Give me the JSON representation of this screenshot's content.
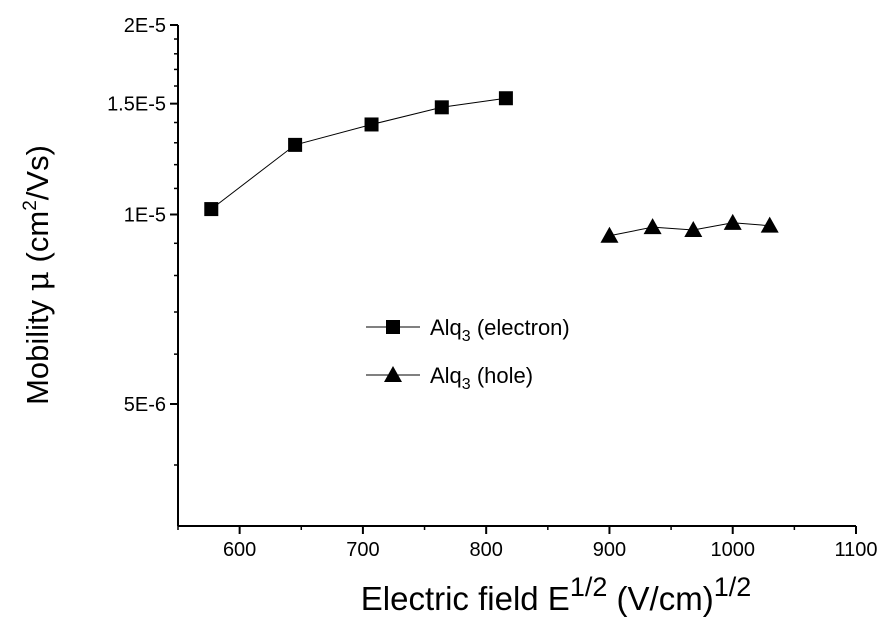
{
  "chart_data": {
    "type": "scatter",
    "xlabel": {
      "main": "Electric field E",
      "sup1": "1/2",
      "mid": " (V/cm)",
      "sup2": "1/2"
    },
    "ylabel": {
      "main": "Mobility ",
      "mu": "μ",
      "unit_open": " (cm",
      "sup": "2",
      "unit_close": "/Vs)"
    },
    "xlim": [
      550,
      1100
    ],
    "ylim": [
      3.2e-06,
      2e-05
    ],
    "xticks": [
      "600",
      "700",
      "800",
      "900",
      "1000",
      "1100"
    ],
    "yticks": [
      "5E-6",
      "1E-5",
      "1.5E-5",
      "2E-5"
    ],
    "grid": false,
    "legend_position": "center-left",
    "series": [
      {
        "name": {
          "base": "Alq",
          "sub": "3",
          "rest": " (electron)"
        },
        "marker": "square",
        "x": [
          577,
          645,
          707,
          764,
          816
        ],
        "y": [
          1.02e-05,
          1.29e-05,
          1.39e-05,
          1.48e-05,
          1.53e-05
        ]
      },
      {
        "name": {
          "base": "Alq",
          "sub": "3",
          "rest": " (hole)"
        },
        "marker": "triangle",
        "x": [
          900,
          935,
          968,
          1000,
          1030
        ],
        "y": [
          9.25e-06,
          9.55e-06,
          9.45e-06,
          9.7e-06,
          9.6e-06
        ]
      }
    ]
  }
}
